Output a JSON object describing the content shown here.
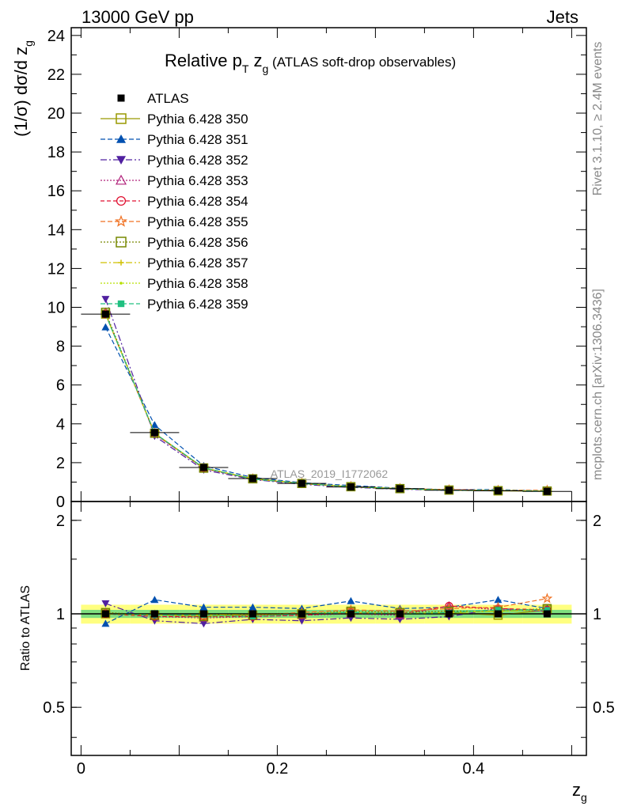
{
  "header": {
    "energy": "13000 GeV pp",
    "process": "Jets",
    "title_main": "Relative p",
    "title_sub_T": "T",
    "title_z": " z",
    "title_sub_g": "g",
    "title_tail": " (ATLAS soft-drop observables)",
    "side_rivet": "Rivet 3.1.10, ≥ 2.4M events",
    "side_mcplots": "mcplots.cern.ch [arXiv:1306.3436]",
    "analysis_id": "ATLAS_2019_I1772062"
  },
  "axes": {
    "ylabel_main": "(1/σ) dσ/d z",
    "ylabel_main_sub": "g",
    "ylabel_ratio": "Ratio to ATLAS",
    "xlabel": "z",
    "xlabel_sub": "g",
    "main_yticks": [
      "0",
      "2",
      "4",
      "6",
      "8",
      "10",
      "12",
      "14",
      "16",
      "18",
      "20",
      "22",
      "24"
    ],
    "ratio_yticks_left": [
      "0.5",
      "1",
      "2"
    ],
    "ratio_yticks_right": [
      "0.5",
      "1",
      "2"
    ],
    "xticks": [
      "0",
      "0.2",
      "0.4"
    ]
  },
  "colors": {
    "data": "#000000",
    "band_inner": "#7fdf7f",
    "band_outer": "#ffff80"
  },
  "chart_data": {
    "type": "line",
    "x": [
      0.025,
      0.075,
      0.125,
      0.175,
      0.225,
      0.275,
      0.325,
      0.375,
      0.425,
      0.475
    ],
    "xlim": [
      -0.01,
      0.515
    ],
    "main_ylim": [
      0,
      24.4
    ],
    "ratio_ylim": [
      0.35,
      2.3
    ],
    "ratio_scale": "log",
    "data": {
      "name": "ATLAS",
      "values": [
        9.65,
        3.55,
        1.75,
        1.18,
        0.93,
        0.75,
        0.66,
        0.58,
        0.55,
        0.52
      ],
      "band_inner": 0.03,
      "band_outer": 0.07
    },
    "series": [
      {
        "name": "Pythia 6.428 350",
        "color": "#999900",
        "dash": "",
        "marker": "square-open",
        "ratio": [
          1.0,
          0.99,
          0.99,
          0.99,
          1.0,
          1.01,
          1.0,
          1.01,
          0.99,
          1.03
        ]
      },
      {
        "name": "Pythia 6.428 351",
        "color": "#0050b0",
        "dash": "6,3",
        "marker": "triangle-up",
        "ratio": [
          0.93,
          1.11,
          1.05,
          1.05,
          1.04,
          1.1,
          1.04,
          1.05,
          1.11,
          1.04
        ]
      },
      {
        "name": "Pythia 6.428 352",
        "color": "#5020a0",
        "dash": "8,3,2,3",
        "marker": "triangle-down",
        "ratio": [
          1.08,
          0.95,
          0.93,
          0.96,
          0.95,
          0.97,
          0.96,
          0.98,
          1.04,
          1.02
        ]
      },
      {
        "name": "Pythia 6.428 353",
        "color": "#b0207a",
        "dash": "2,2",
        "marker": "triangle-open",
        "ratio": [
          1.01,
          0.98,
          0.97,
          0.98,
          0.99,
          1.0,
          0.99,
          1.06,
          1.03,
          1.02
        ]
      },
      {
        "name": "Pythia 6.428 354",
        "color": "#e01030",
        "dash": "5,3",
        "marker": "circle-open",
        "ratio": [
          1.0,
          0.98,
          0.98,
          0.98,
          0.99,
          1.01,
          1.0,
          1.06,
          1.04,
          1.03
        ]
      },
      {
        "name": "Pythia 6.428 355",
        "color": "#f07020",
        "dash": "6,3",
        "marker": "star-open",
        "ratio": [
          1.0,
          0.99,
          0.98,
          0.99,
          1.01,
          1.03,
          1.02,
          1.04,
          1.05,
          1.12
        ]
      },
      {
        "name": "Pythia 6.428 356",
        "color": "#778800",
        "dash": "2,2",
        "marker": "square-open",
        "ratio": [
          1.01,
          0.99,
          0.98,
          0.99,
          1.0,
          1.02,
          1.01,
          1.02,
          1.02,
          1.04
        ]
      },
      {
        "name": "Pythia 6.428 357",
        "color": "#d0c000",
        "dash": "8,3,2,3",
        "marker": "cross-small",
        "ratio": [
          1.0,
          0.99,
          0.99,
          1.0,
          1.0,
          1.01,
          1.0,
          1.01,
          1.02,
          1.03
        ]
      },
      {
        "name": "Pythia 6.428 358",
        "color": "#b8e000",
        "dash": "2,2",
        "marker": "dot",
        "ratio": [
          1.0,
          0.99,
          0.99,
          1.0,
          1.0,
          1.01,
          1.0,
          1.01,
          1.02,
          1.03
        ]
      },
      {
        "name": "Pythia 6.428 359",
        "color": "#20c080",
        "dash": "6,3",
        "marker": "square-filled",
        "ratio": [
          1.0,
          0.99,
          0.99,
          0.98,
          1.0,
          1.01,
          1.0,
          1.01,
          1.03,
          1.03
        ]
      }
    ]
  }
}
